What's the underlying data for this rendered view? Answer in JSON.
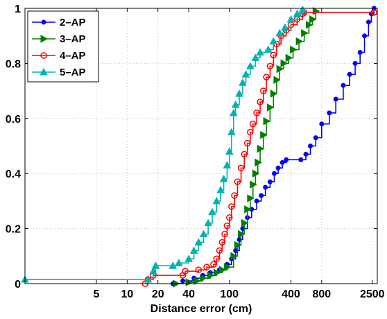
{
  "chart_data": {
    "type": "line",
    "title": "",
    "xlabel": "Distance error (cm)",
    "ylabel": "",
    "xscale": "log",
    "xlim": [
      1,
      2800
    ],
    "ylim": [
      0,
      1
    ],
    "grid": true,
    "legend_position": "top-left",
    "x_ticks": [
      5,
      10,
      20,
      40,
      100,
      400,
      800,
      2500
    ],
    "x_tick_labels": [
      "5",
      "10",
      "20",
      "40",
      "100",
      "400",
      "800",
      "2500"
    ],
    "y_ticks": [
      0,
      0.2,
      0.4,
      0.6,
      0.8,
      1
    ],
    "y_tick_labels": [
      "0",
      "0.2",
      "0.4",
      "0.6",
      "0.8",
      "1"
    ],
    "series": [
      {
        "name": "2–AP",
        "color": "#0000ff",
        "marker": "dot",
        "points": [
          [
            28,
            0
          ],
          [
            35,
            0.01
          ],
          [
            45,
            0.02
          ],
          [
            55,
            0.03
          ],
          [
            65,
            0.04
          ],
          [
            80,
            0.05
          ],
          [
            95,
            0.07
          ],
          [
            105,
            0.09
          ],
          [
            115,
            0.12
          ],
          [
            125,
            0.16
          ],
          [
            135,
            0.2
          ],
          [
            150,
            0.24
          ],
          [
            165,
            0.27
          ],
          [
            185,
            0.3
          ],
          [
            205,
            0.32
          ],
          [
            225,
            0.35
          ],
          [
            250,
            0.37
          ],
          [
            275,
            0.4
          ],
          [
            300,
            0.42
          ],
          [
            330,
            0.44
          ],
          [
            360,
            0.45
          ],
          [
            500,
            0.45
          ],
          [
            560,
            0.47
          ],
          [
            620,
            0.5
          ],
          [
            700,
            0.53
          ],
          [
            800,
            0.58
          ],
          [
            950,
            0.62
          ],
          [
            1100,
            0.67
          ],
          [
            1300,
            0.72
          ],
          [
            1500,
            0.76
          ],
          [
            1700,
            0.8
          ],
          [
            1900,
            0.84
          ],
          [
            2100,
            0.9
          ],
          [
            2300,
            0.95
          ],
          [
            2450,
            0.98
          ],
          [
            2600,
            1.0
          ]
        ]
      },
      {
        "name": "3–AP",
        "color": "#008000",
        "marker": "triangle-right",
        "points": [
          [
            30,
            0
          ],
          [
            40,
            0.005
          ],
          [
            48,
            0.01
          ],
          [
            55,
            0.02
          ],
          [
            65,
            0.03
          ],
          [
            75,
            0.04
          ],
          [
            85,
            0.05
          ],
          [
            95,
            0.06
          ],
          [
            110,
            0.1
          ],
          [
            120,
            0.14
          ],
          [
            130,
            0.18
          ],
          [
            140,
            0.22
          ],
          [
            150,
            0.27
          ],
          [
            160,
            0.31
          ],
          [
            170,
            0.36
          ],
          [
            180,
            0.4
          ],
          [
            190,
            0.44
          ],
          [
            200,
            0.49
          ],
          [
            215,
            0.54
          ],
          [
            230,
            0.59
          ],
          [
            250,
            0.64
          ],
          [
            270,
            0.69
          ],
          [
            290,
            0.74
          ],
          [
            310,
            0.78
          ],
          [
            340,
            0.8
          ],
          [
            380,
            0.82
          ],
          [
            420,
            0.85
          ],
          [
            480,
            0.88
          ],
          [
            540,
            0.91
          ],
          [
            600,
            0.94
          ],
          [
            650,
            0.96
          ],
          [
            700,
            0.99
          ]
        ]
      },
      {
        "name": "4–AP",
        "color": "#ff0000",
        "marker": "circle",
        "points": [
          [
            15,
            0
          ],
          [
            16,
            0.015
          ],
          [
            18,
            0.03
          ],
          [
            35,
            0.03
          ],
          [
            37,
            0.045
          ],
          [
            50,
            0.05
          ],
          [
            60,
            0.06
          ],
          [
            70,
            0.07
          ],
          [
            75,
            0.09
          ],
          [
            80,
            0.12
          ],
          [
            85,
            0.15
          ],
          [
            90,
            0.18
          ],
          [
            95,
            0.21
          ],
          [
            100,
            0.24
          ],
          [
            105,
            0.28
          ],
          [
            112,
            0.32
          ],
          [
            120,
            0.37
          ],
          [
            130,
            0.42
          ],
          [
            140,
            0.47
          ],
          [
            150,
            0.51
          ],
          [
            160,
            0.55
          ],
          [
            170,
            0.58
          ],
          [
            185,
            0.62
          ],
          [
            200,
            0.66
          ],
          [
            215,
            0.7
          ],
          [
            230,
            0.75
          ],
          [
            250,
            0.79
          ],
          [
            270,
            0.83
          ],
          [
            290,
            0.87
          ],
          [
            320,
            0.9
          ],
          [
            360,
            0.92
          ],
          [
            400,
            0.94
          ],
          [
            460,
            0.96
          ],
          [
            520,
            0.98
          ],
          [
            540,
            0.985
          ],
          [
            2600,
            0.985
          ]
        ]
      },
      {
        "name": "5–AP",
        "color": "#00b2b2",
        "marker": "triangle-up",
        "points": [
          [
            1,
            0.015
          ],
          [
            16,
            0.015
          ],
          [
            18,
            0.045
          ],
          [
            19,
            0.065
          ],
          [
            28,
            0.065
          ],
          [
            32,
            0.075
          ],
          [
            40,
            0.09
          ],
          [
            45,
            0.12
          ],
          [
            50,
            0.15
          ],
          [
            56,
            0.18
          ],
          [
            62,
            0.22
          ],
          [
            68,
            0.26
          ],
          [
            75,
            0.3
          ],
          [
            82,
            0.34
          ],
          [
            88,
            0.38
          ],
          [
            95,
            0.43
          ],
          [
            100,
            0.48
          ],
          [
            105,
            0.55
          ],
          [
            110,
            0.62
          ],
          [
            115,
            0.65
          ],
          [
            125,
            0.69
          ],
          [
            135,
            0.73
          ],
          [
            145,
            0.76
          ],
          [
            160,
            0.79
          ],
          [
            180,
            0.82
          ],
          [
            200,
            0.84
          ],
          [
            240,
            0.85
          ],
          [
            270,
            0.88
          ],
          [
            310,
            0.91
          ],
          [
            350,
            0.93
          ],
          [
            400,
            0.96
          ],
          [
            460,
            0.98
          ],
          [
            520,
            0.995
          ]
        ]
      }
    ]
  }
}
